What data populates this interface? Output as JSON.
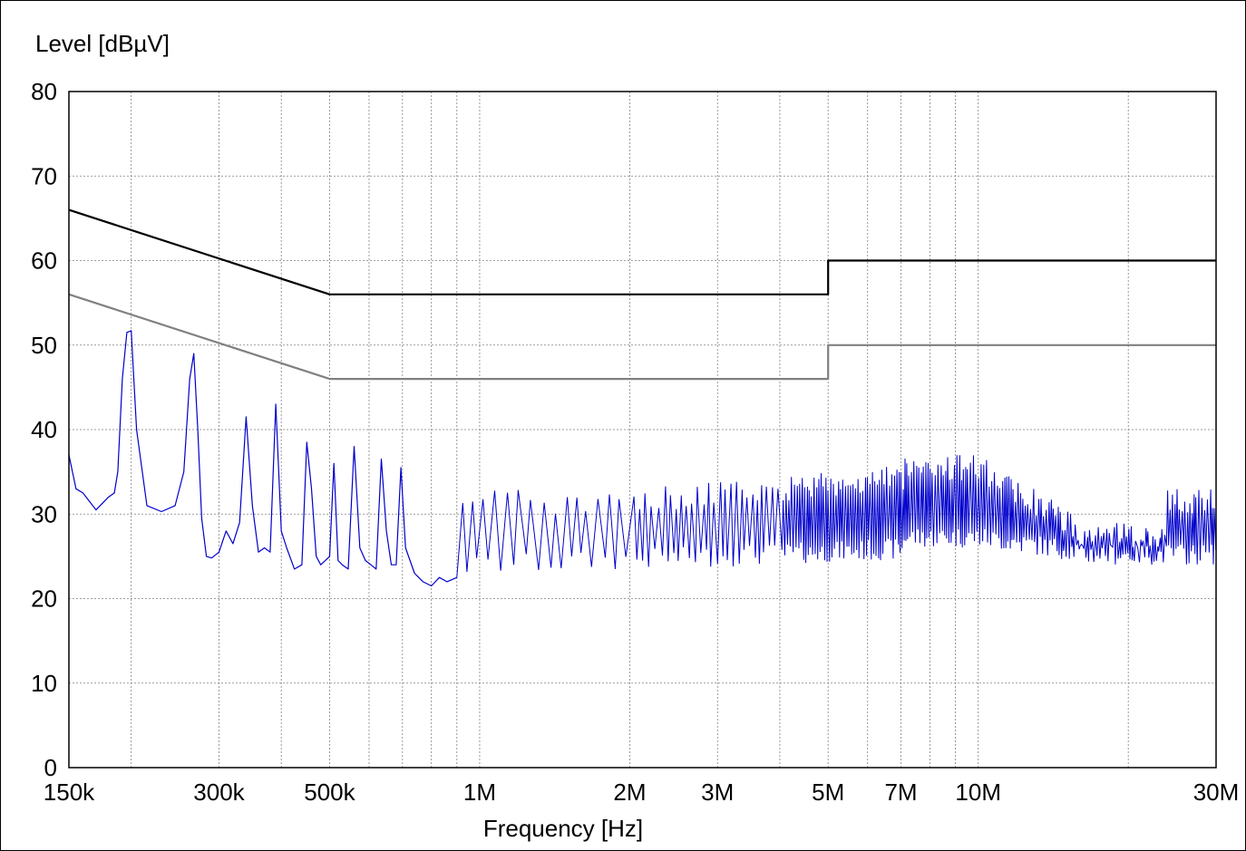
{
  "chart_data": {
    "type": "line",
    "xlabel": "Frequency [Hz]",
    "ylabel": "Level [dBµV]",
    "x_scale": "log",
    "xlim": [
      150000,
      30000000
    ],
    "ylim": [
      0,
      80
    ],
    "grid": true,
    "y_ticks": [
      {
        "value": 0,
        "label": "0"
      },
      {
        "value": 10,
        "label": "10"
      },
      {
        "value": 20,
        "label": "20"
      },
      {
        "value": 30,
        "label": "30"
      },
      {
        "value": 40,
        "label": "40"
      },
      {
        "value": 50,
        "label": "50"
      },
      {
        "value": 60,
        "label": "60"
      },
      {
        "value": 70,
        "label": "70"
      },
      {
        "value": 80,
        "label": "80"
      }
    ],
    "x_ticks": [
      {
        "value": 150000,
        "label": "150k"
      },
      {
        "value": 300000,
        "label": "300k"
      },
      {
        "value": 500000,
        "label": "500k"
      },
      {
        "value": 1000000,
        "label": "1M"
      },
      {
        "value": 2000000,
        "label": "2M"
      },
      {
        "value": 3000000,
        "label": "3M"
      },
      {
        "value": 5000000,
        "label": "5M"
      },
      {
        "value": 7000000,
        "label": "7M"
      },
      {
        "value": 10000000,
        "label": "10M"
      },
      {
        "value": 30000000,
        "label": "30M"
      }
    ],
    "x_minor_grid": [
      200000,
      400000,
      600000,
      700000,
      800000,
      900000,
      4000000,
      6000000,
      8000000,
      9000000,
      20000000
    ],
    "series": [
      {
        "color": "#000000",
        "x": [
          150000,
          500000,
          5000000,
          5000000,
          30000000
        ],
        "y": [
          66,
          56,
          56,
          60,
          60
        ]
      },
      {
        "color": "#808080",
        "x": [
          150000,
          500000,
          5000000,
          5000000,
          30000000
        ],
        "y": [
          56,
          46,
          46,
          50,
          50
        ]
      },
      {
        "color": "#0000cc",
        "x": [
          150000,
          155000,
          160000,
          170000,
          180000,
          185000,
          188000,
          192000,
          196000,
          200000,
          205000,
          215000,
          230000,
          245000,
          255000,
          262000,
          267000,
          272000,
          277000,
          283000,
          290000,
          300000,
          310000,
          320000,
          330000,
          340000,
          350000,
          360000,
          370000,
          380000,
          390000,
          400000,
          410000,
          425000,
          440000,
          450000,
          460000,
          470000,
          480000,
          500000,
          510000,
          520000,
          530000,
          545000,
          560000,
          575000,
          590000,
          605000,
          620000,
          635000,
          650000,
          665000,
          680000,
          695000,
          710000,
          740000,
          770000,
          800000,
          830000,
          860000,
          900000
        ],
        "y": [
          37,
          33,
          32.5,
          30.5,
          32,
          32.5,
          35,
          46,
          51.5,
          51.7,
          40,
          31,
          30.3,
          31,
          35,
          46,
          49,
          40,
          29.5,
          25,
          24.8,
          25.5,
          28,
          26.5,
          29,
          41.5,
          31,
          25.5,
          26,
          25.5,
          43,
          28,
          26,
          23.5,
          24,
          38.5,
          33,
          25,
          24,
          25,
          36,
          24.5,
          24,
          23.5,
          38,
          26,
          24.5,
          24,
          23.5,
          36.5,
          28,
          24,
          24,
          35.5,
          26,
          23,
          22,
          21.5,
          22.5,
          22,
          22.5
        ]
      }
    ]
  }
}
